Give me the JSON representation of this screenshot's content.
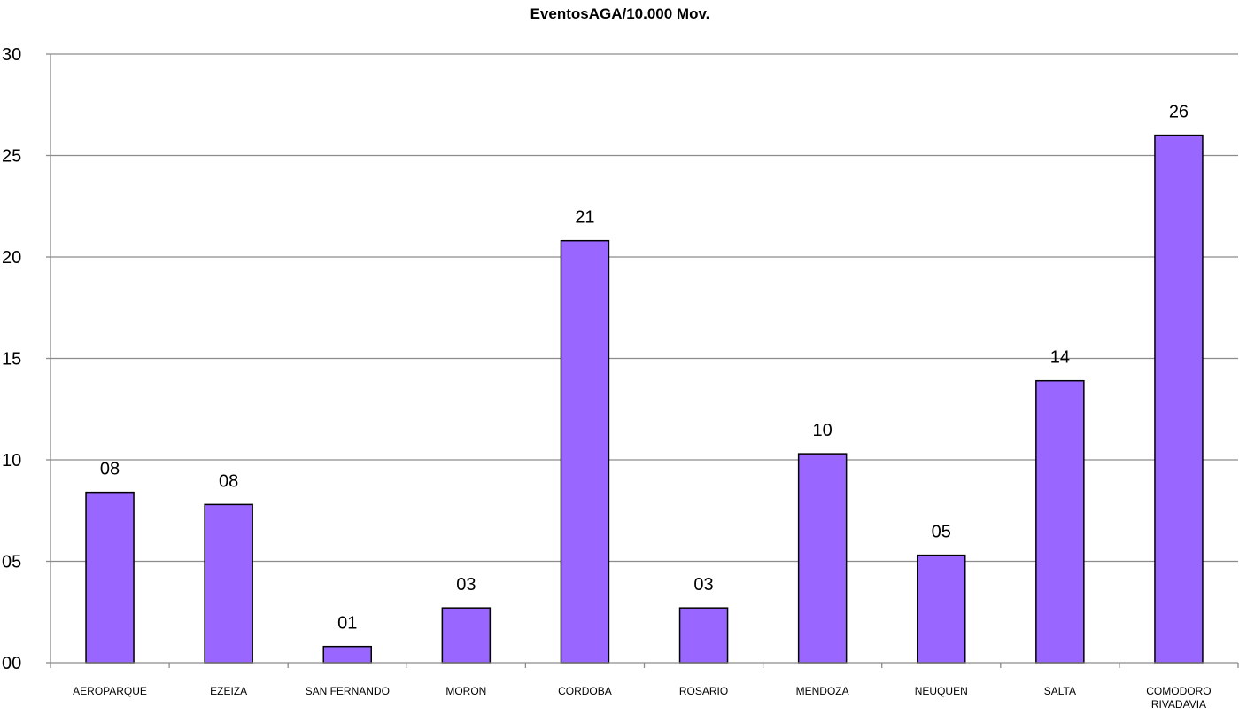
{
  "chart_data": {
    "type": "bar",
    "title": "EventosAGA/10.000 Mov.",
    "xlabel": "",
    "ylabel": "",
    "ylim": [
      0,
      30
    ],
    "yticks": [
      0,
      5,
      10,
      15,
      20,
      25,
      30
    ],
    "ytick_labels": [
      "00",
      "05",
      "10",
      "15",
      "20",
      "25",
      "30"
    ],
    "grid": true,
    "legend": "none",
    "bar_color": "#9966ff",
    "bar_edge_color": "#000000",
    "categories": [
      [
        "AEROPARQUE"
      ],
      [
        "EZEIZA"
      ],
      [
        "SAN FERNANDO"
      ],
      [
        "MORON"
      ],
      [
        "CORDOBA"
      ],
      [
        "ROSARIO"
      ],
      [
        "MENDOZA"
      ],
      [
        "NEUQUEN"
      ],
      [
        "SALTA"
      ],
      [
        "COMODORO",
        "RIVADAVIA"
      ]
    ],
    "values": [
      8.4,
      7.8,
      0.8,
      2.7,
      20.8,
      2.7,
      10.3,
      5.3,
      13.9,
      26.0
    ],
    "data_labels": [
      "08",
      "08",
      "01",
      "03",
      "21",
      "03",
      "10",
      "05",
      "14",
      "26"
    ]
  }
}
